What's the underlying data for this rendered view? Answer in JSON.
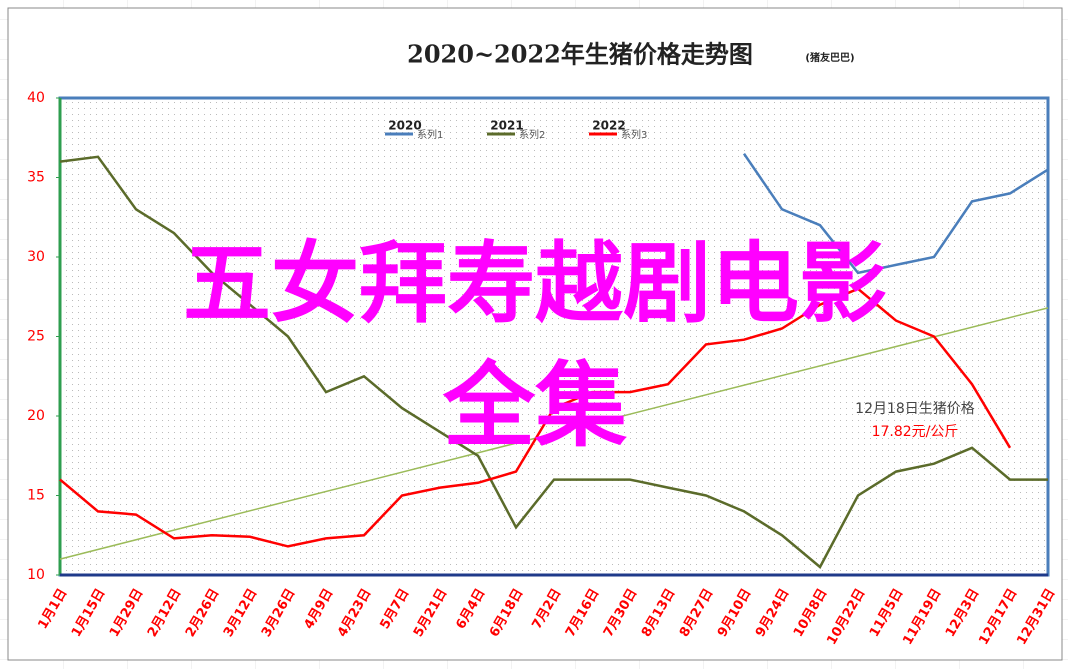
{
  "chart_data": {
    "type": "line",
    "title": "2020~2022年生猪价格走势图",
    "subtitle": "(猪友巴巴)",
    "categories": [
      "1月1日",
      "1月15日",
      "1月29日",
      "2月12日",
      "2月26日",
      "3月12日",
      "3月26日",
      "4月9日",
      "4月23日",
      "5月7日",
      "5月21日",
      "6月4日",
      "6月18日",
      "7月2日",
      "7月16日",
      "7月30日",
      "8月13日",
      "8月27日",
      "9月10日",
      "9月24日",
      "10月8日",
      "10月22日",
      "11月5日",
      "11月19日",
      "12月3日",
      "12月17日",
      "12月31日"
    ],
    "series": [
      {
        "name": "2020",
        "legend_label": "系列1",
        "color": "#4a7ebb",
        "values": [
          null,
          null,
          null,
          null,
          null,
          null,
          null,
          null,
          null,
          null,
          null,
          null,
          null,
          null,
          null,
          null,
          null,
          null,
          36.5,
          33,
          32,
          29,
          29.5,
          30,
          33.5,
          34,
          35.5
        ]
      },
      {
        "name": "2021",
        "legend_label": "系列2",
        "color": "#5b6b2a",
        "values": [
          36,
          36.3,
          33,
          31.5,
          29,
          27,
          25,
          21.5,
          22.5,
          20.5,
          19,
          17.5,
          13,
          16,
          16,
          16,
          15.5,
          15,
          14,
          12.5,
          10.5,
          15,
          16.5,
          17,
          18,
          16,
          16
        ]
      },
      {
        "name": "2022",
        "legend_label": "系列3",
        "color": "#ff0000",
        "values": [
          16,
          14,
          13.8,
          12.3,
          12.5,
          12.4,
          11.8,
          12.3,
          12.5,
          15,
          15.5,
          15.8,
          16.5,
          20.5,
          21.5,
          21.5,
          22,
          24.5,
          24.8,
          25.5,
          27,
          28,
          26,
          25,
          22,
          18,
          null
        ]
      }
    ],
    "trendline": {
      "color": "#9bbb59",
      "start": 11,
      "end": 26.8
    },
    "ylim": [
      10,
      40
    ],
    "yticks": [
      10,
      15,
      20,
      25,
      30,
      35,
      40
    ],
    "annotation": {
      "date": "12月18日生猪价格",
      "price": "17.82元/公斤"
    },
    "overlay": [
      "五女拜寿越剧电影",
      "全集"
    ]
  }
}
